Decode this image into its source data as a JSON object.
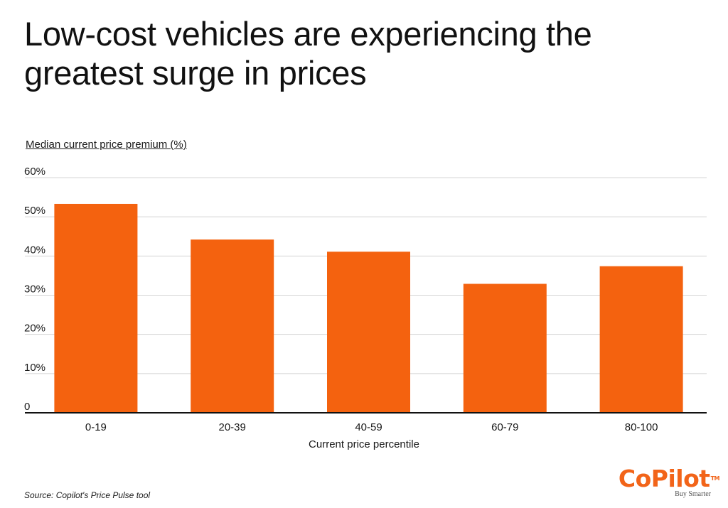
{
  "title": "Low-cost vehicles are experiencing the greatest surge in prices",
  "source": "Source:  Copilot's Price Pulse tool",
  "brand": {
    "name": "CoPilot",
    "trademark": "TM",
    "tagline": "Buy Smarter",
    "color": "#f26419"
  },
  "chart_data": {
    "type": "bar",
    "ylabel": "Median current price premium (%)",
    "xlabel": "Current price percentile",
    "categories": [
      "0-19",
      "20-39",
      "40-59",
      "60-79",
      "80-100"
    ],
    "values": [
      53.3,
      44.2,
      41.1,
      32.9,
      37.4
    ],
    "ylim": [
      0,
      60
    ],
    "yticks": [
      0,
      10,
      20,
      30,
      40,
      50,
      60
    ],
    "ytick_labels": [
      "0",
      "10%",
      "20%",
      "30%",
      "40%",
      "50%",
      "60%"
    ],
    "bar_color": "#f4620f",
    "grid": true
  }
}
